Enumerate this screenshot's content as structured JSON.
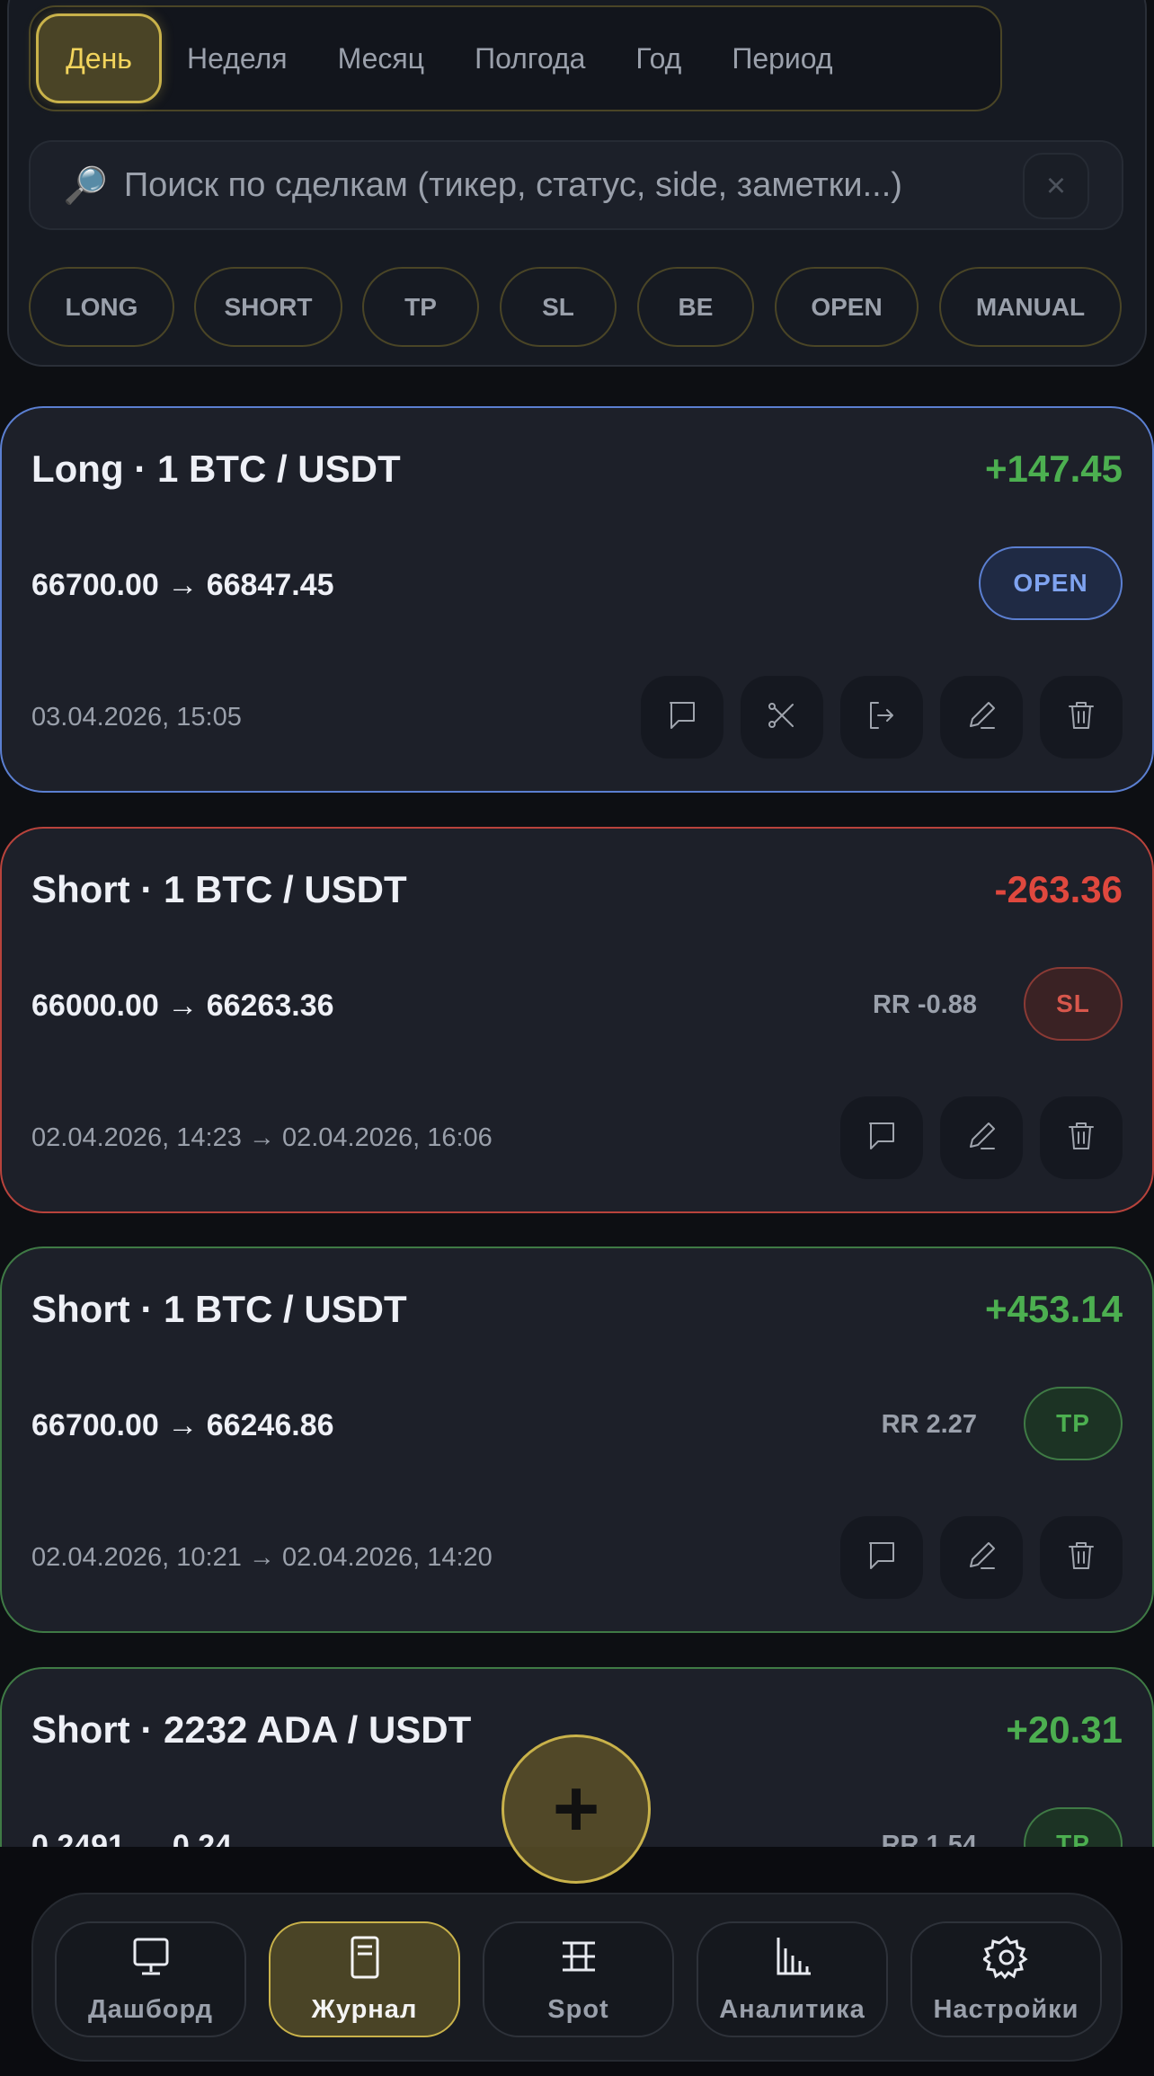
{
  "periods": {
    "items": [
      "День",
      "Неделя",
      "Месяц",
      "Полгода",
      "Год",
      "Период"
    ],
    "active": "День"
  },
  "search": {
    "placeholder": "Поиск по сделкам (тикер, статус, side, заметки...)",
    "value": "",
    "icon": "magnifier-icon",
    "clear": "×"
  },
  "filters": [
    "LONG",
    "SHORT",
    "TP",
    "SL",
    "BE",
    "OPEN",
    "MANUAL"
  ],
  "colors": {
    "accent": "#c9b24a",
    "profit": "#4caf50",
    "loss": "#e0483e",
    "open": "#5b7fd1"
  },
  "trades": [
    {
      "title": "Long · 1 BTC / USDT",
      "pnl": "+147.45",
      "prices": "66700.00 → 66847.45",
      "rr": "",
      "status": "OPEN",
      "date": "03.04.2026, 15:05",
      "actions": [
        "comment",
        "split",
        "close",
        "edit",
        "delete"
      ]
    },
    {
      "title": "Short · 1 BTC / USDT",
      "pnl": "-263.36",
      "prices": "66000.00 → 66263.36",
      "rr": "RR -0.88",
      "status": "SL",
      "date": "02.04.2026, 14:23 → 02.04.2026, 16:06",
      "actions": [
        "comment",
        "edit",
        "delete"
      ]
    },
    {
      "title": "Short · 1 BTC / USDT",
      "pnl": "+453.14",
      "prices": "66700.00 → 66246.86",
      "rr": "RR 2.27",
      "status": "TP",
      "date": "02.04.2026, 10:21 → 02.04.2026, 14:20",
      "actions": [
        "comment",
        "edit",
        "delete"
      ]
    },
    {
      "title": "Short · 2232 ADA / USDT",
      "pnl": "+20.31",
      "prices": "0.2491 → 0.24",
      "rr": "RR 1.54",
      "status": "TP",
      "date": "",
      "actions": []
    }
  ],
  "fab": "+",
  "nav": [
    {
      "label": "Дашборд",
      "icon": "monitor-icon"
    },
    {
      "label": "Журнал",
      "icon": "journal-icon",
      "active": true
    },
    {
      "label": "Spot",
      "icon": "spot-icon"
    },
    {
      "label": "Аналитика",
      "icon": "bar-chart-icon"
    },
    {
      "label": "Настройки",
      "icon": "gear-icon"
    }
  ]
}
